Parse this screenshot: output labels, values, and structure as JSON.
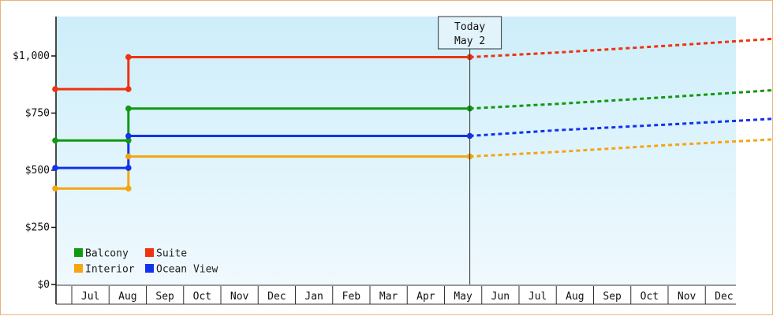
{
  "chart_data": {
    "type": "line",
    "annotation": {
      "line1": "Today",
      "line2": "May 2"
    },
    "y_ticks": [
      {
        "value": 0,
        "label": "$0"
      },
      {
        "value": 250,
        "label": "$250"
      },
      {
        "value": 500,
        "label": "$500"
      },
      {
        "value": 750,
        "label": "$750"
      },
      {
        "value": 1000,
        "label": "$1,000"
      }
    ],
    "ylim": [
      0,
      1200
    ],
    "x_months": [
      "Jul",
      "Aug",
      "Sep",
      "Oct",
      "Nov",
      "Dec",
      "Jan",
      "Feb",
      "Mar",
      "Apr",
      "May",
      "Jun",
      "Jul",
      "Aug",
      "Sep",
      "Oct",
      "Nov",
      "Dec"
    ],
    "grid": false,
    "legend_placement": "bottom-left",
    "series": [
      {
        "name": "Balcony",
        "color": "#119911",
        "history": [
          [
            0,
            630
          ],
          [
            1.52,
            630
          ],
          [
            1.52,
            770
          ],
          [
            10.68,
            770
          ]
        ],
        "forecast": [
          [
            10.68,
            770
          ],
          [
            13,
            790
          ],
          [
            16,
            820
          ],
          [
            18.8,
            850
          ]
        ]
      },
      {
        "name": "Suite",
        "color": "#ee3311",
        "history": [
          [
            0,
            855
          ],
          [
            1.52,
            855
          ],
          [
            1.52,
            995
          ],
          [
            10.68,
            995
          ]
        ],
        "forecast": [
          [
            10.68,
            995
          ],
          [
            13,
            1015
          ],
          [
            16,
            1045
          ],
          [
            18.8,
            1075
          ]
        ]
      },
      {
        "name": "Interior",
        "color": "#f5a511",
        "history": [
          [
            0,
            420
          ],
          [
            1.52,
            420
          ],
          [
            1.52,
            560
          ],
          [
            10.68,
            560
          ]
        ],
        "forecast": [
          [
            10.68,
            560
          ],
          [
            13,
            580
          ],
          [
            16,
            610
          ],
          [
            18.8,
            635
          ]
        ]
      },
      {
        "name": "Ocean View",
        "color": "#1133ee",
        "history": [
          [
            0,
            510
          ],
          [
            1.52,
            510
          ],
          [
            1.52,
            650
          ],
          [
            10.68,
            650
          ]
        ],
        "forecast": [
          [
            10.68,
            650
          ],
          [
            13,
            675
          ],
          [
            16,
            700
          ],
          [
            18.8,
            725
          ]
        ]
      }
    ],
    "markers_x": [
      0,
      1.52,
      10.68
    ],
    "background": {
      "top": "#cdeefa",
      "bottom": "#f0f9fe"
    },
    "x_axis_color": "#333333"
  }
}
